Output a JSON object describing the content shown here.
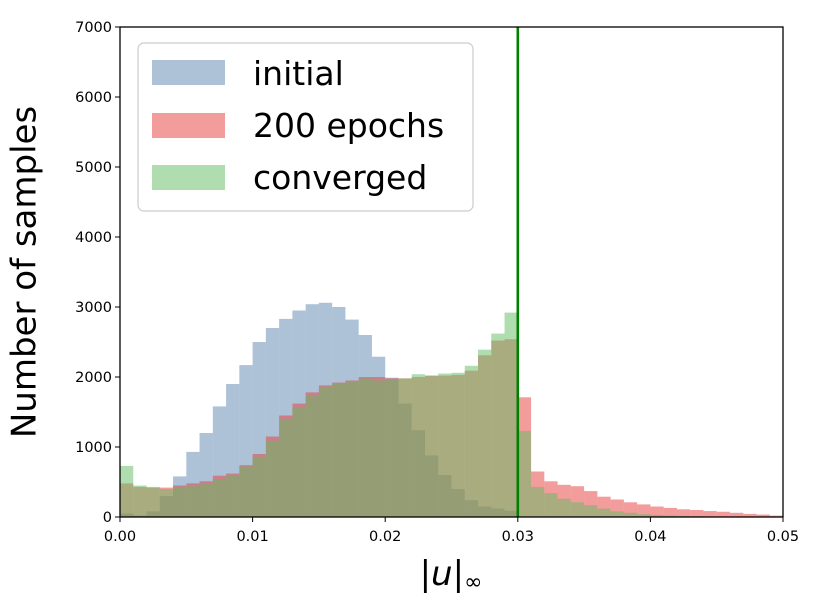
{
  "chart_data": {
    "type": "bar",
    "subtype": "overlapping-histogram",
    "xlabel_main": "|u|",
    "xlabel_sub": "∞",
    "ylabel": "Number of samples",
    "xlim": [
      0.0,
      0.05
    ],
    "ylim": [
      0,
      7000
    ],
    "xticks": [
      "0.00",
      "0.01",
      "0.02",
      "0.03",
      "0.04",
      "0.05"
    ],
    "yticks": [
      "0",
      "1000",
      "2000",
      "3000",
      "4000",
      "5000",
      "6000",
      "7000"
    ],
    "bin_width": 0.001,
    "bin_start": 0.0,
    "legend_position": "upper-left",
    "threshold_line": {
      "x": 0.03,
      "color": "#008000"
    },
    "series": [
      {
        "name": "initial",
        "color": "#5b86b0",
        "values": [
          50,
          20,
          80,
          300,
          580,
          930,
          1200,
          1580,
          1900,
          2170,
          2500,
          2700,
          2830,
          2950,
          3040,
          3060,
          3000,
          2820,
          2600,
          2290,
          1990,
          1620,
          1240,
          880,
          600,
          400,
          240,
          150,
          120,
          90,
          0,
          0,
          0,
          0,
          0,
          0,
          0,
          0,
          0,
          0,
          0,
          0,
          0,
          0,
          0,
          0,
          0,
          0,
          0,
          0
        ]
      },
      {
        "name": "200 epochs",
        "color": "#e8393a",
        "values": [
          480,
          430,
          420,
          420,
          450,
          480,
          510,
          590,
          620,
          740,
          900,
          1150,
          1450,
          1620,
          1780,
          1880,
          1920,
          1950,
          2000,
          2000,
          1980,
          1980,
          2000,
          2020,
          2020,
          2030,
          2090,
          2310,
          2520,
          2540,
          1710,
          650,
          510,
          460,
          440,
          370,
          290,
          250,
          210,
          180,
          150,
          130,
          110,
          100,
          85,
          75,
          60,
          45,
          35,
          20
        ]
      },
      {
        "name": "converged",
        "color": "#5fbb5f",
        "values": [
          730,
          450,
          430,
          400,
          430,
          440,
          470,
          540,
          600,
          720,
          860,
          1090,
          1400,
          1560,
          1730,
          1860,
          1900,
          1940,
          1980,
          1950,
          1970,
          1980,
          2040,
          2020,
          2050,
          2060,
          2160,
          2390,
          2620,
          2920,
          1230,
          430,
          340,
          260,
          210,
          170,
          120,
          80,
          60,
          40,
          30,
          20,
          15,
          10,
          8,
          5,
          4,
          3,
          2,
          1
        ]
      }
    ]
  }
}
